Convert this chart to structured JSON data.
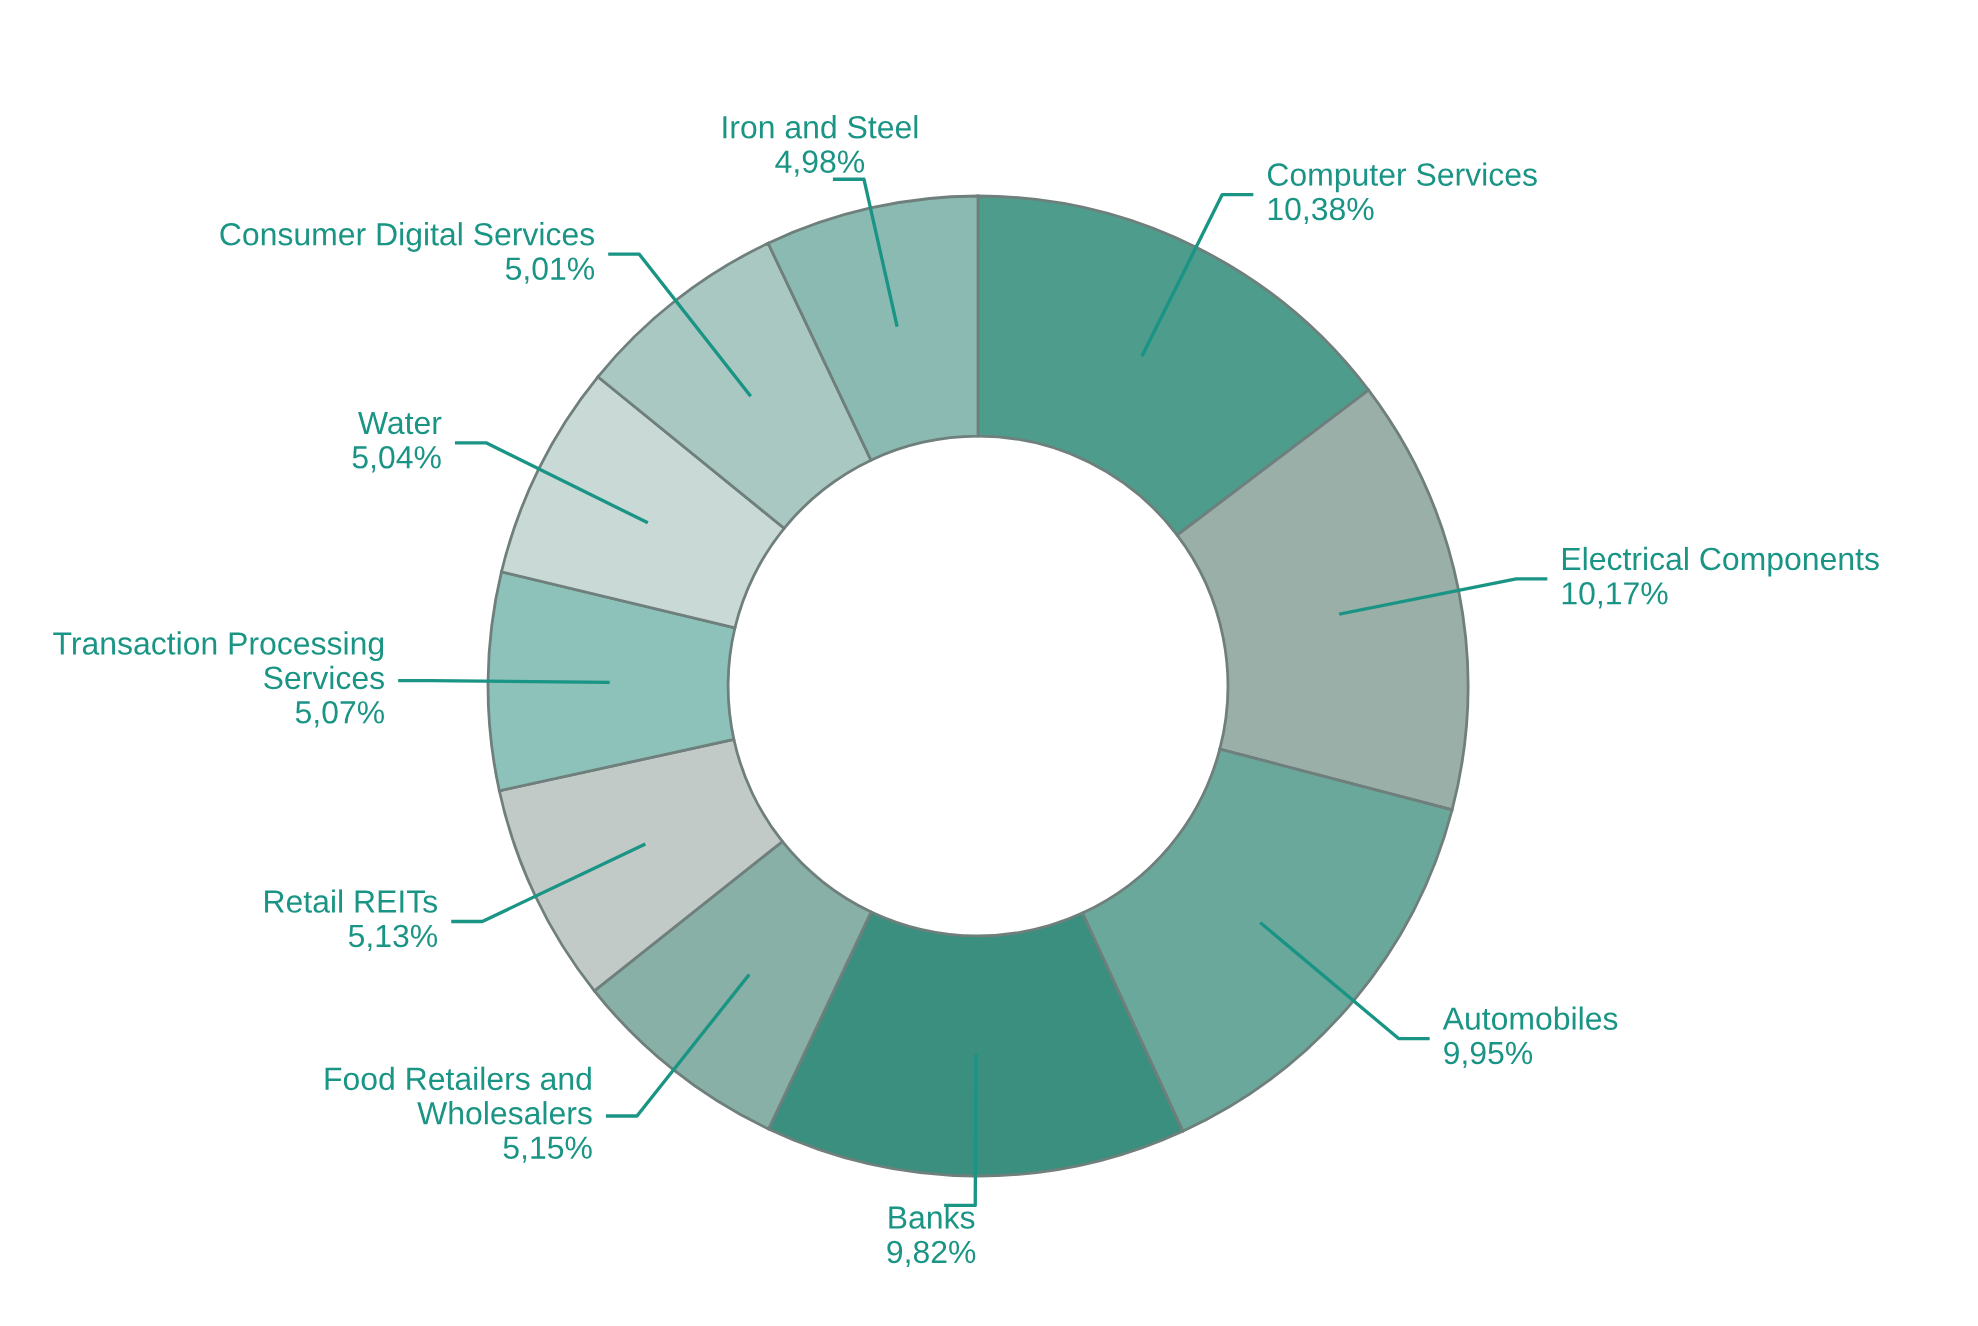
{
  "chart_data": {
    "type": "donut",
    "categories": [
      "Computer Services",
      "Electrical Components",
      "Automobiles",
      "Banks",
      "Food Retailers and\nWholesalers",
      "Retail REITs",
      "Transaction Processing\nServices",
      "Water",
      "Consumer Digital Services",
      "Iron and Steel"
    ],
    "values": [
      10.38,
      10.17,
      9.95,
      9.82,
      5.15,
      5.13,
      5.07,
      5.04,
      5.01,
      4.98
    ],
    "value_labels": [
      "10,38%",
      "10,17%",
      "9,95%",
      "9,82%",
      "5,15%",
      "5,13%",
      "5,07%",
      "5,04%",
      "5,01%",
      "4,98%"
    ],
    "colors": [
      "#4d9c8c",
      "#9aafa8",
      "#6aa89c",
      "#3a8f7f",
      "#88b0a6",
      "#c2cac8",
      "#8cc2ba",
      "#c9d9d6",
      "#a9c8c2",
      "#8abab2"
    ],
    "legend": false
  }
}
